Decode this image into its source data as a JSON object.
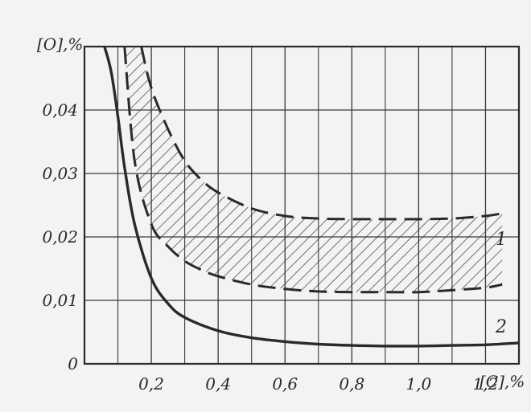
{
  "chart_data": {
    "type": "line",
    "xlabel": "[C],%",
    "ylabel": "[O],%",
    "xlim": [
      0,
      1.3
    ],
    "ylim": [
      0,
      0.05
    ],
    "grid": true,
    "x_ticks": [
      0.2,
      0.4,
      0.6,
      0.8,
      1.0,
      1.2
    ],
    "x_tick_labels": [
      "0,2",
      "0,4",
      "0,6",
      "0,8",
      "1,0",
      "1,2"
    ],
    "y_ticks": [
      0,
      0.01,
      0.02,
      0.03,
      0.04
    ],
    "y_tick_labels": [
      "0",
      "0,01",
      "0,02",
      "0,03",
      "0,04"
    ],
    "band": {
      "label": "1",
      "upper_x": [
        0.17,
        0.2,
        0.25,
        0.3,
        0.35,
        0.4,
        0.5,
        0.6,
        0.7,
        0.8,
        0.9,
        1.0,
        1.1,
        1.2,
        1.25
      ],
      "upper_y": [
        0.05,
        0.0435,
        0.037,
        0.032,
        0.029,
        0.027,
        0.0245,
        0.0233,
        0.0229,
        0.0228,
        0.0228,
        0.0228,
        0.0229,
        0.0233,
        0.0237
      ],
      "lower_x": [
        0.12,
        0.15,
        0.2,
        0.25,
        0.3,
        0.35,
        0.4,
        0.5,
        0.6,
        0.7,
        0.8,
        0.9,
        1.0,
        1.1,
        1.2,
        1.25
      ],
      "lower_y": [
        0.05,
        0.032,
        0.022,
        0.0185,
        0.0162,
        0.0148,
        0.0138,
        0.0125,
        0.0118,
        0.0114,
        0.0113,
        0.0113,
        0.0113,
        0.0116,
        0.012,
        0.0125
      ]
    },
    "series": [
      {
        "name": "2",
        "x": [
          0.06,
          0.08,
          0.1,
          0.12,
          0.15,
          0.2,
          0.25,
          0.3,
          0.4,
          0.5,
          0.6,
          0.7,
          0.8,
          0.9,
          1.0,
          1.1,
          1.2,
          1.3
        ],
        "y": [
          0.05,
          0.046,
          0.039,
          0.031,
          0.022,
          0.0135,
          0.0095,
          0.0073,
          0.0052,
          0.0041,
          0.0035,
          0.0031,
          0.0029,
          0.0028,
          0.0028,
          0.0029,
          0.003,
          0.0033
        ]
      }
    ],
    "colors": {
      "background": "#f3f3f1",
      "ink": "#2a2a2a",
      "grid": "#3a3a3a"
    }
  }
}
